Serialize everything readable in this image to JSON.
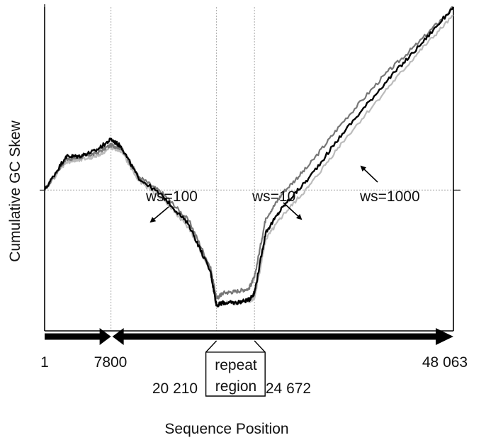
{
  "chart_data": {
    "type": "line",
    "title": "",
    "xlabel": "Sequence Position",
    "ylabel": "Cumulative GC Skew",
    "xlim": [
      1,
      48063
    ],
    "ylim": [
      -1.0,
      1.3
    ],
    "grid": true,
    "gridlines_x": [
      7800,
      20210,
      24672
    ],
    "gridline_y": 0,
    "series": [
      {
        "name": "ws=10",
        "color": "#777777",
        "x": [
          1,
          2500,
          4000,
          6000,
          7800,
          9000,
          11000,
          14000,
          17000,
          19500,
          20210,
          21000,
          22500,
          24000,
          24672,
          26000,
          28000,
          31000,
          35000,
          40000,
          44000,
          48063
        ],
        "y": [
          0.0,
          0.22,
          0.23,
          0.26,
          0.32,
          0.3,
          0.1,
          -0.03,
          -0.22,
          -0.55,
          -0.77,
          -0.73,
          -0.72,
          -0.7,
          -0.62,
          -0.2,
          -0.02,
          0.17,
          0.48,
          0.82,
          1.05,
          1.3
        ]
      },
      {
        "name": "ws=100",
        "color": "#000000",
        "x": [
          1,
          2500,
          4000,
          6000,
          7800,
          9000,
          11000,
          14000,
          17000,
          19500,
          20210,
          21000,
          22500,
          24000,
          24672,
          26000,
          28000,
          31000,
          35000,
          40000,
          44000,
          48063
        ],
        "y": [
          0.0,
          0.24,
          0.24,
          0.28,
          0.36,
          0.31,
          0.09,
          -0.05,
          -0.25,
          -0.58,
          -0.82,
          -0.8,
          -0.8,
          -0.78,
          -0.73,
          -0.3,
          -0.12,
          0.08,
          0.4,
          0.76,
          1.02,
          1.3
        ]
      },
      {
        "name": "ws=1000",
        "color": "#bbbbbb",
        "x": [
          1,
          2500,
          4000,
          6000,
          7800,
          9000,
          11000,
          14000,
          17000,
          19500,
          20210,
          21000,
          22500,
          24000,
          24672,
          26000,
          28000,
          31000,
          35000,
          40000,
          44000,
          48063
        ],
        "y": [
          0.0,
          0.2,
          0.21,
          0.24,
          0.3,
          0.28,
          0.07,
          -0.07,
          -0.27,
          -0.58,
          -0.81,
          -0.8,
          -0.8,
          -0.79,
          -0.77,
          -0.35,
          -0.18,
          0.02,
          0.34,
          0.7,
          0.98,
          1.24
        ]
      }
    ],
    "annotations": [
      {
        "text": "ws=100"
      },
      {
        "text": "ws=10"
      },
      {
        "text": "ws=1000"
      }
    ],
    "region_box_label_line1": "repeat",
    "region_box_label_line2": "region",
    "position_labels": {
      "start": "1",
      "p7800": "7800",
      "end": "48 063",
      "p20210": "20 210",
      "p24672": "24 672"
    }
  }
}
